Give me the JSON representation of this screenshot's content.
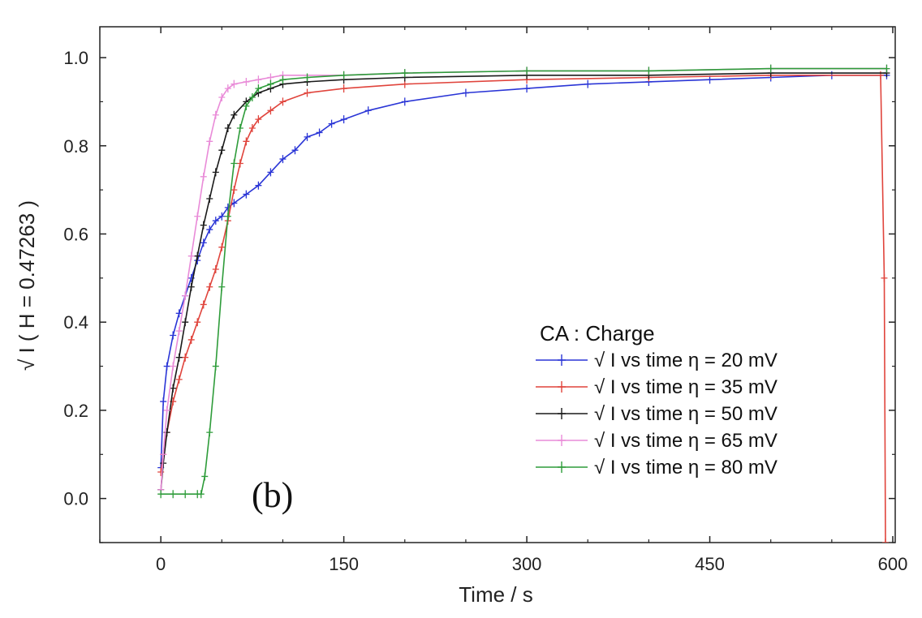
{
  "chart_data": {
    "type": "line",
    "xlabel": "Time / s",
    "ylabel": "√ I ( H = 0.47263 )",
    "xlim": [
      -50,
      602
    ],
    "ylim": [
      -0.1,
      1.07
    ],
    "xticks": [
      0,
      150,
      300,
      450,
      600
    ],
    "yticks": [
      0.0,
      0.2,
      0.4,
      0.6,
      0.8,
      1.0
    ],
    "xtick_labels": [
      "0",
      "150",
      "300",
      "450",
      "600"
    ],
    "ytick_labels": [
      "0.0",
      "0.2",
      "0.4",
      "0.6",
      "0.8",
      "1.0"
    ],
    "panel_label": "(b)",
    "legend": {
      "title": "CA : Charge",
      "placement": "bottom-right"
    },
    "series": [
      {
        "name": "√ I vs time η = 20 mV",
        "color": "#2a35d6",
        "x": [
          0,
          2,
          5,
          10,
          15,
          20,
          25,
          30,
          35,
          40,
          45,
          50,
          55,
          60,
          70,
          80,
          90,
          100,
          110,
          120,
          130,
          140,
          150,
          170,
          200,
          250,
          300,
          350,
          400,
          450,
          500,
          550,
          595
        ],
        "y": [
          0.07,
          0.22,
          0.3,
          0.37,
          0.42,
          0.46,
          0.5,
          0.54,
          0.58,
          0.61,
          0.63,
          0.64,
          0.66,
          0.67,
          0.69,
          0.71,
          0.74,
          0.77,
          0.79,
          0.82,
          0.83,
          0.85,
          0.86,
          0.88,
          0.9,
          0.92,
          0.93,
          0.94,
          0.945,
          0.95,
          0.955,
          0.96,
          0.96
        ]
      },
      {
        "name": "√ I vs time η = 35 mV",
        "color": "#e0443c",
        "x": [
          0,
          2,
          5,
          10,
          15,
          20,
          25,
          30,
          35,
          40,
          45,
          50,
          55,
          60,
          65,
          70,
          75,
          80,
          90,
          100,
          120,
          150,
          200,
          300,
          400,
          500,
          590,
          593,
          594
        ],
        "y": [
          0.06,
          0.1,
          0.15,
          0.22,
          0.27,
          0.32,
          0.36,
          0.4,
          0.44,
          0.48,
          0.52,
          0.57,
          0.63,
          0.7,
          0.76,
          0.81,
          0.84,
          0.86,
          0.88,
          0.9,
          0.92,
          0.93,
          0.94,
          0.95,
          0.955,
          0.96,
          0.96,
          0.5,
          -0.1
        ]
      },
      {
        "name": "√ I vs time η = 50 mV",
        "color": "#1a1a1a",
        "x": [
          0,
          2,
          5,
          10,
          15,
          20,
          25,
          30,
          35,
          40,
          45,
          50,
          55,
          60,
          70,
          80,
          90,
          100,
          120,
          150,
          200,
          300,
          400,
          500,
          595
        ],
        "y": [
          0.02,
          0.08,
          0.15,
          0.25,
          0.32,
          0.4,
          0.48,
          0.55,
          0.62,
          0.68,
          0.74,
          0.79,
          0.84,
          0.87,
          0.9,
          0.92,
          0.93,
          0.94,
          0.945,
          0.95,
          0.955,
          0.96,
          0.96,
          0.965,
          0.965
        ]
      },
      {
        "name": "√ I vs time η = 65 mV",
        "color": "#e98bd8",
        "x": [
          0,
          2,
          5,
          10,
          15,
          20,
          25,
          30,
          35,
          40,
          45,
          50,
          55,
          60,
          70,
          80,
          90,
          100,
          150,
          200,
          300,
          400,
          500,
          595
        ],
        "y": [
          0.02,
          0.1,
          0.2,
          0.3,
          0.38,
          0.46,
          0.55,
          0.64,
          0.73,
          0.81,
          0.87,
          0.91,
          0.93,
          0.94,
          0.945,
          0.95,
          0.955,
          0.96,
          0.96,
          0.965,
          0.97,
          0.97,
          0.975,
          0.975
        ]
      },
      {
        "name": "√ I vs time η = 80 mV",
        "color": "#2e9c3a",
        "x": [
          0,
          10,
          20,
          30,
          33,
          36,
          40,
          45,
          50,
          55,
          60,
          65,
          70,
          75,
          80,
          90,
          100,
          120,
          150,
          200,
          300,
          400,
          500,
          595
        ],
        "y": [
          0.01,
          0.01,
          0.01,
          0.01,
          0.01,
          0.05,
          0.15,
          0.3,
          0.48,
          0.64,
          0.76,
          0.84,
          0.89,
          0.91,
          0.93,
          0.94,
          0.95,
          0.955,
          0.96,
          0.965,
          0.97,
          0.97,
          0.975,
          0.975
        ]
      }
    ]
  }
}
